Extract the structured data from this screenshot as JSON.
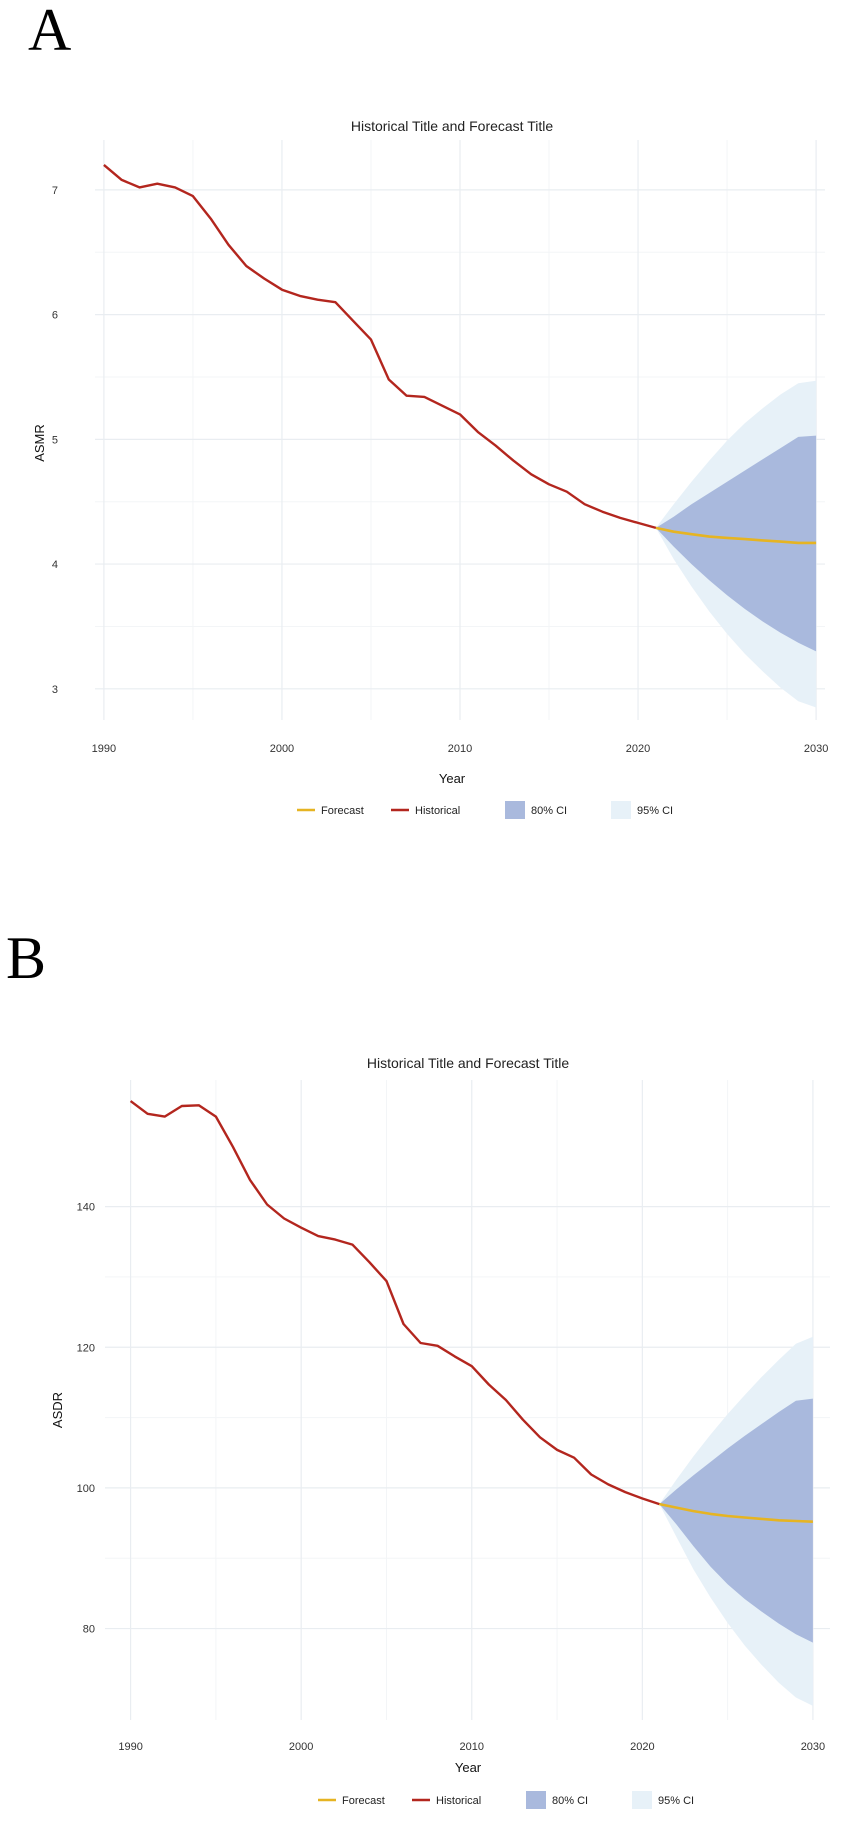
{
  "colors": {
    "historical": "#b3261e",
    "forecast": "#e6b422",
    "ci80": "#a9b9dd",
    "ci95": "#e7f1f8"
  },
  "chart_data": [
    {
      "type": "line",
      "panel_label": "A",
      "title": "Historical Title and Forecast Title",
      "xlabel": "Year",
      "ylabel": "ASMR",
      "xlim": [
        1989.5,
        2030.5
      ],
      "ylim": [
        2.75,
        7.4
      ],
      "xticks": [
        1990,
        2000,
        2010,
        2020,
        2030
      ],
      "yticks": [
        3,
        4,
        5,
        6,
        7
      ],
      "grid": true,
      "legend_position": "bottom",
      "legend": [
        "Forecast",
        "Historical",
        "80% CI",
        "95% CI"
      ],
      "historical": {
        "x": [
          1990,
          1991,
          1992,
          1993,
          1994,
          1995,
          1996,
          1997,
          1998,
          1999,
          2000,
          2001,
          2002,
          2003,
          2004,
          2005,
          2006,
          2007,
          2008,
          2009,
          2010,
          2011,
          2012,
          2013,
          2014,
          2015,
          2016,
          2017,
          2018,
          2019,
          2020,
          2021
        ],
        "y": [
          7.2,
          7.08,
          7.02,
          7.05,
          7.02,
          6.95,
          6.77,
          6.56,
          6.39,
          6.29,
          6.2,
          6.15,
          6.12,
          6.1,
          5.95,
          5.8,
          5.48,
          5.35,
          5.34,
          5.27,
          5.2,
          5.06,
          4.95,
          4.83,
          4.72,
          4.64,
          4.58,
          4.48,
          4.42,
          4.37,
          4.33,
          4.29
        ]
      },
      "forecast": {
        "x": [
          2021,
          2022,
          2023,
          2024,
          2025,
          2026,
          2027,
          2028,
          2029,
          2030
        ],
        "y": [
          4.29,
          4.26,
          4.24,
          4.22,
          4.21,
          4.2,
          4.19,
          4.18,
          4.17,
          4.17
        ]
      },
      "ci80": {
        "lower": [
          4.29,
          4.14,
          4.0,
          3.87,
          3.75,
          3.64,
          3.54,
          3.45,
          3.37,
          3.3
        ],
        "upper": [
          4.29,
          4.38,
          4.48,
          4.57,
          4.66,
          4.75,
          4.84,
          4.93,
          5.02,
          5.03
        ]
      },
      "ci95": {
        "lower": [
          4.29,
          4.04,
          3.82,
          3.62,
          3.44,
          3.28,
          3.14,
          3.01,
          2.9,
          2.85
        ],
        "upper": [
          4.29,
          4.48,
          4.66,
          4.83,
          4.99,
          5.13,
          5.25,
          5.36,
          5.45,
          5.47
        ]
      }
    },
    {
      "type": "line",
      "panel_label": "B",
      "title": "Historical Title and Forecast Title",
      "xlabel": "Year",
      "ylabel": "ASDR",
      "xlim": [
        1988.5,
        2031
      ],
      "ylim": [
        67,
        158
      ],
      "xticks": [
        1990,
        2000,
        2010,
        2020,
        2030
      ],
      "yticks": [
        80,
        100,
        120,
        140
      ],
      "grid": true,
      "legend_position": "bottom",
      "legend": [
        "Forecast",
        "Historical",
        "80% CI",
        "95% CI"
      ],
      "historical": {
        "x": [
          1990,
          1991,
          1992,
          1993,
          1994,
          1995,
          1996,
          1997,
          1998,
          1999,
          2000,
          2001,
          2002,
          2003,
          2004,
          2005,
          2006,
          2007,
          2008,
          2009,
          2010,
          2011,
          2012,
          2013,
          2014,
          2015,
          2016,
          2017,
          2018,
          2019,
          2020,
          2021
        ],
        "y": [
          155,
          153.2,
          152.8,
          154.3,
          154.4,
          152.8,
          148.5,
          143.8,
          140.3,
          138.3,
          137,
          135.8,
          135.3,
          134.6,
          132.1,
          129.4,
          123.3,
          120.6,
          120.2,
          118.7,
          117.3,
          114.7,
          112.5,
          109.7,
          107.2,
          105.4,
          104.3,
          101.9,
          100.5,
          99.4,
          98.5,
          97.7
        ]
      },
      "forecast": {
        "x": [
          2021,
          2022,
          2023,
          2024,
          2025,
          2026,
          2027,
          2028,
          2029,
          2030
        ],
        "y": [
          97.7,
          97.2,
          96.7,
          96.3,
          96,
          95.8,
          95.6,
          95.4,
          95.3,
          95.2
        ]
      },
      "ci80": {
        "lower": [
          97.7,
          94.8,
          91.7,
          88.8,
          86.3,
          84.2,
          82.4,
          80.7,
          79.2,
          78
        ],
        "upper": [
          97.7,
          99.8,
          101.8,
          103.7,
          105.6,
          107.4,
          109.1,
          110.8,
          112.4,
          112.7
        ]
      },
      "ci95": {
        "lower": [
          97.7,
          93,
          88.4,
          84.4,
          80.8,
          77.6,
          74.8,
          72.3,
          70.2,
          69
        ],
        "upper": [
          97.7,
          101.2,
          104.5,
          107.6,
          110.5,
          113.2,
          115.8,
          118.2,
          120.5,
          121.5
        ]
      }
    }
  ]
}
